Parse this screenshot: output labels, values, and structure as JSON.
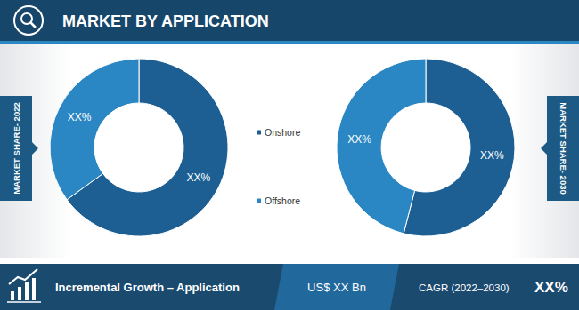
{
  "header": {
    "title": "MARKET BY APPLICATION"
  },
  "chart_data": [
    {
      "type": "pie",
      "title": "MARKET SHARE- 2022",
      "categories": [
        "Onshore",
        "Offshore"
      ],
      "values": [
        65,
        35
      ],
      "value_labels": [
        "XX%",
        "XX%"
      ],
      "colors": [
        "#1d5f93",
        "#2b87c3"
      ],
      "data_labels": true,
      "legend": "center"
    },
    {
      "type": "pie",
      "title": "MARKET SHARE- 2030",
      "categories": [
        "Onshore",
        "Offshore"
      ],
      "values": [
        54,
        46
      ],
      "value_labels": [
        "XX%",
        "XX%"
      ],
      "colors": [
        "#1d5f93",
        "#2b87c3"
      ],
      "data_labels": true,
      "legend": "center"
    }
  ],
  "footer": {
    "label": "Incremental Growth – Application",
    "value": "US$ XX Bn",
    "cagr_label": "CAGR (2022–2030)",
    "cagr_value": "XX%"
  }
}
